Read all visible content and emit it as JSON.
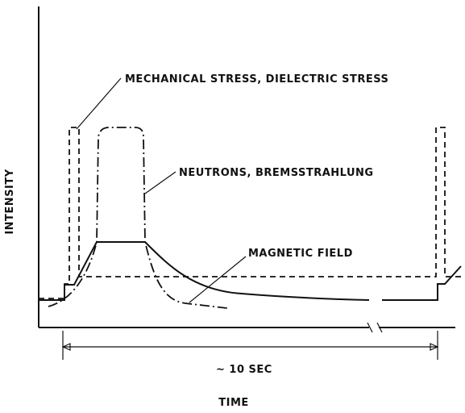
{
  "axes": {
    "y_label": "INTENSITY",
    "x_label": "TIME"
  },
  "labels": [
    "MECHANICAL STRESS, DIELECTRIC STRESS",
    "NEUTRONS, BREMSSTRAHLUNG",
    "MAGNETIC FIELD"
  ],
  "duration": "~ 10 SEC"
}
